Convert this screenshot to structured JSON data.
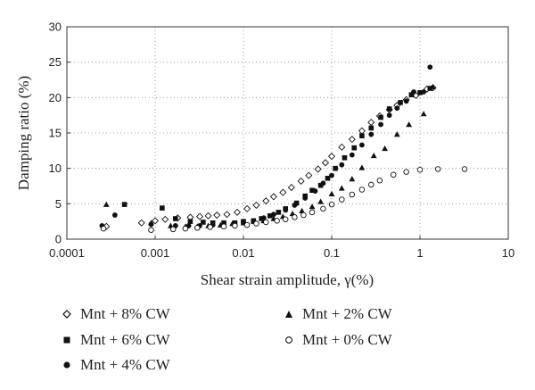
{
  "chart_data": {
    "type": "scatter",
    "xlabel": "Shear strain amplitude, γ(%)",
    "ylabel": "Damping ratio (%)",
    "xscale": "log",
    "xlim": [
      0.0001,
      10
    ],
    "ylim": [
      0,
      30
    ],
    "grid": "dotted",
    "x_ticks": [
      "0.0001",
      "0.001",
      "0.01",
      "0.1",
      "1",
      "10"
    ],
    "y_ticks": [
      "0",
      "5",
      "10",
      "15",
      "20",
      "25",
      "30"
    ],
    "legend_position": "below",
    "series": [
      {
        "name": "Mnt + 8% CW",
        "marker": "diamond-open",
        "x": [
          0.00028,
          0.0007,
          0.001,
          0.0013,
          0.0018,
          0.0025,
          0.0032,
          0.004,
          0.005,
          0.0065,
          0.0085,
          0.011,
          0.014,
          0.018,
          0.022,
          0.028,
          0.035,
          0.045,
          0.055,
          0.07,
          0.085,
          0.1,
          0.13,
          0.17,
          0.22,
          0.28,
          0.35,
          0.45,
          0.55,
          0.7,
          0.9,
          1.2,
          1.4
        ],
        "y": [
          1.8,
          2.3,
          2.6,
          2.8,
          3.0,
          3.1,
          3.2,
          3.3,
          3.4,
          3.5,
          3.8,
          4.3,
          4.8,
          5.4,
          6.0,
          6.6,
          7.3,
          8.2,
          9.0,
          9.9,
          10.8,
          11.7,
          13.0,
          14.1,
          15.3,
          16.5,
          17.4,
          18.3,
          18.9,
          19.7,
          20.3,
          21.2,
          21.4
        ]
      },
      {
        "name": "Mnt + 6% CW",
        "marker": "square-filled",
        "x": [
          0.00045,
          0.0012,
          0.0017,
          0.0025,
          0.0035,
          0.0045,
          0.006,
          0.008,
          0.01,
          0.013,
          0.016,
          0.02,
          0.025,
          0.03,
          0.04,
          0.05,
          0.06,
          0.075,
          0.09,
          0.11,
          0.14,
          0.18,
          0.22,
          0.28,
          0.36,
          0.45,
          0.6,
          0.8,
          1.0,
          1.3
        ],
        "y": [
          4.9,
          4.4,
          2.9,
          2.5,
          2.4,
          2.3,
          2.3,
          2.3,
          2.5,
          2.6,
          2.9,
          3.3,
          3.8,
          4.3,
          5.1,
          6.1,
          6.9,
          7.6,
          8.6,
          10.0,
          11.5,
          12.9,
          14.6,
          15.7,
          17.2,
          18.4,
          19.3,
          20.4,
          20.7,
          21.3
        ]
      },
      {
        "name": "Mnt + 4% CW",
        "marker": "circle-filled",
        "x": [
          0.00025,
          0.00035,
          0.0009,
          0.0017,
          0.0024,
          0.0032,
          0.0045,
          0.006,
          0.008,
          0.01,
          0.013,
          0.017,
          0.022,
          0.03,
          0.038,
          0.05,
          0.065,
          0.08,
          0.1,
          0.13,
          0.17,
          0.22,
          0.28,
          0.36,
          0.45,
          0.55,
          0.7,
          0.85,
          1.1,
          1.3
        ],
        "y": [
          1.9,
          3.4,
          2.1,
          1.9,
          1.9,
          1.9,
          2.0,
          2.1,
          2.2,
          2.4,
          2.6,
          3.0,
          3.5,
          4.1,
          4.8,
          5.8,
          6.8,
          7.9,
          9.0,
          10.5,
          11.9,
          13.3,
          14.8,
          16.2,
          17.5,
          18.5,
          19.5,
          20.8,
          20.8,
          24.3
        ]
      },
      {
        "name": "Mnt + 2% CW",
        "marker": "triangle-filled",
        "x": [
          0.00028,
          0.0009,
          0.0015,
          0.0022,
          0.003,
          0.004,
          0.0055,
          0.0075,
          0.01,
          0.013,
          0.017,
          0.022,
          0.028,
          0.036,
          0.046,
          0.06,
          0.075,
          0.1,
          0.13,
          0.17,
          0.22,
          0.3,
          0.4,
          0.55,
          0.75,
          1.1,
          1.4
        ],
        "y": [
          4.9,
          2.3,
          1.9,
          1.8,
          1.8,
          1.9,
          2.0,
          2.2,
          2.3,
          2.5,
          2.6,
          2.9,
          3.2,
          3.6,
          4.0,
          4.6,
          5.3,
          6.4,
          7.2,
          8.5,
          10.1,
          11.8,
          12.8,
          14.8,
          16.2,
          17.7,
          21.5
        ]
      },
      {
        "name": "Mnt + 0% CW",
        "marker": "circle-open",
        "x": [
          0.00026,
          0.0009,
          0.0016,
          0.0022,
          0.003,
          0.0042,
          0.006,
          0.008,
          0.011,
          0.014,
          0.018,
          0.024,
          0.03,
          0.038,
          0.048,
          0.06,
          0.08,
          0.1,
          0.13,
          0.17,
          0.22,
          0.28,
          0.35,
          0.5,
          0.7,
          1.0,
          1.6,
          3.2
        ],
        "y": [
          1.5,
          1.3,
          1.4,
          1.5,
          1.6,
          1.7,
          1.8,
          1.9,
          2.0,
          2.2,
          2.4,
          2.6,
          2.8,
          3.1,
          3.4,
          3.8,
          4.3,
          4.9,
          5.6,
          6.3,
          7.0,
          7.7,
          8.3,
          9.1,
          9.5,
          9.8,
          9.9,
          9.9
        ]
      }
    ]
  }
}
